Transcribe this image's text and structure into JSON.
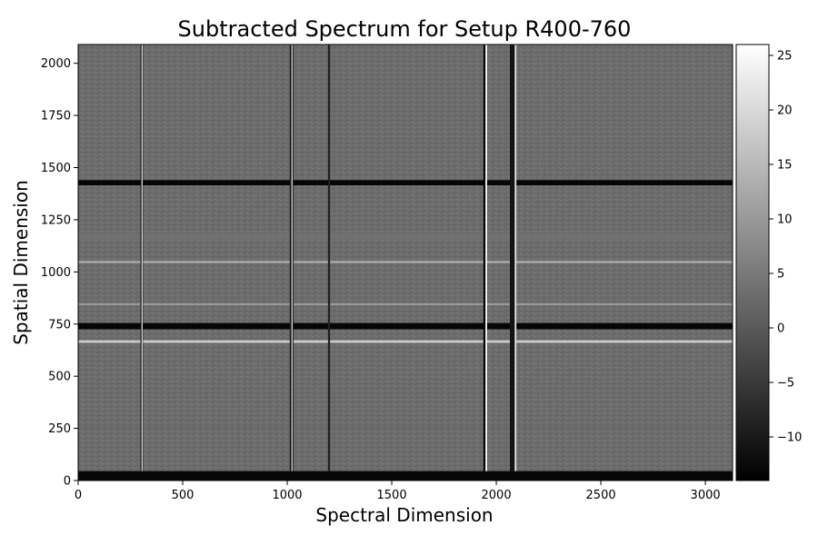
{
  "chart_data": {
    "type": "heatmap",
    "title": "Subtracted Spectrum for Setup R400-760",
    "xlabel": "Spectral Dimension",
    "ylabel": "Spatial Dimension",
    "xlim": [
      0,
      3130
    ],
    "ylim": [
      0,
      2090
    ],
    "x_ticks": [
      0,
      500,
      1000,
      1500,
      2000,
      2500,
      3000
    ],
    "y_ticks": [
      0,
      250,
      500,
      750,
      1000,
      1250,
      1500,
      1750,
      2000
    ],
    "colormap": "gray",
    "colorbar": {
      "range": [
        -14,
        26
      ],
      "ticks": [
        -10,
        -5,
        0,
        5,
        10,
        15,
        20,
        25
      ],
      "tick_labels": [
        "−10",
        "−5",
        "0",
        "5",
        "10",
        "15",
        "20",
        "25"
      ]
    },
    "background_level": -1,
    "features": {
      "dark_rows": [
        [
          0,
          45,
          -13
        ],
        [
          725,
          755,
          -13
        ],
        [
          1415,
          1440,
          -13
        ]
      ],
      "bright_rows": [
        [
          660,
          672,
          18
        ],
        [
          840,
          850,
          10
        ],
        [
          1043,
          1052,
          14
        ]
      ],
      "dark_columns": [
        [
          298,
          310,
          -13
        ],
        [
          1012,
          1030,
          -10
        ],
        [
          1195,
          1205,
          -9
        ],
        [
          1938,
          1950,
          -13
        ],
        [
          2065,
          2095,
          -11
        ]
      ],
      "bright_columns": [
        [
          303,
          308,
          25
        ],
        [
          1020,
          1026,
          18
        ],
        [
          1948,
          1956,
          25
        ],
        [
          2088,
          2096,
          22
        ]
      ],
      "faint_bright_rows": [
        [
          1150,
          1185,
          4
        ],
        [
          250,
          260,
          2
        ]
      ]
    }
  }
}
